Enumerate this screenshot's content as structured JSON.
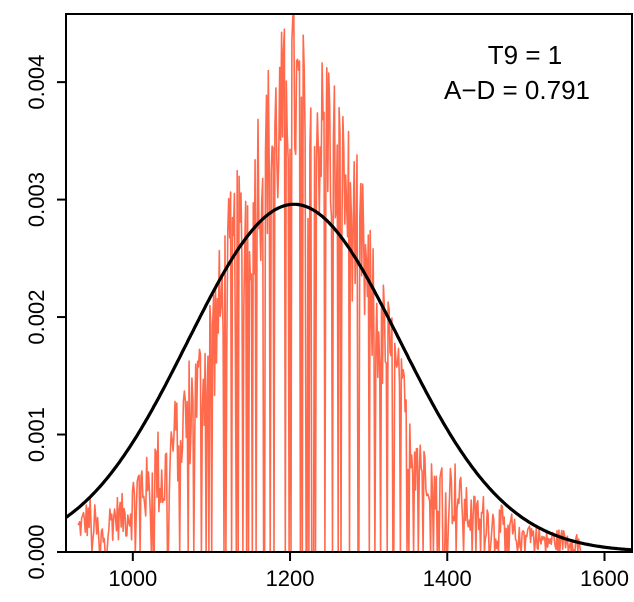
{
  "chart_data": {
    "type": "line",
    "title": "",
    "xlabel": "",
    "ylabel": "",
    "xlim": [
      915,
      1635
    ],
    "ylim": [
      0,
      0.00458
    ],
    "x_ticks": [
      1000,
      1200,
      1400,
      1600
    ],
    "x_tick_labels": [
      "1000",
      "1200",
      "1400",
      "1600"
    ],
    "y_ticks": [
      0.0,
      0.001,
      0.002,
      0.003,
      0.004
    ],
    "y_tick_labels": [
      "0.000",
      "0.001",
      "0.002",
      "0.003",
      "0.004"
    ],
    "grid": false,
    "annotations": [
      "T9 = 1",
      "A−D = 0.791"
    ],
    "series": [
      {
        "color": "#ff6a4d",
        "style": "empirical histogram-like density (noisy)",
        "x": [
          930,
          945,
          960,
          975,
          990,
          1000,
          1010,
          1020,
          1030,
          1040,
          1050,
          1060,
          1070,
          1080,
          1090,
          1100,
          1110,
          1120,
          1130,
          1140,
          1150,
          1160,
          1170,
          1180,
          1190,
          1200,
          1210,
          1220,
          1230,
          1240,
          1250,
          1260,
          1270,
          1280,
          1290,
          1300,
          1310,
          1320,
          1330,
          1340,
          1350,
          1360,
          1370,
          1380,
          1390,
          1400,
          1410,
          1420,
          1430,
          1440,
          1450,
          1460,
          1470,
          1480,
          1490,
          1500,
          1520,
          1540,
          1560,
          1570
        ],
        "y": [
          0.0002,
          0.0003,
          0.0001,
          0.0003,
          0.0003,
          0.0004,
          0.0006,
          0.0005,
          0.0007,
          0.0006,
          0.0009,
          0.001,
          0.0012,
          0.0013,
          0.0015,
          0.0018,
          0.002,
          0.0023,
          0.0025,
          0.0027,
          0.0029,
          0.0032,
          0.0034,
          0.0035,
          0.0037,
          0.004,
          0.0038,
          0.0036,
          0.0037,
          0.0035,
          0.0036,
          0.0032,
          0.0031,
          0.0028,
          0.0026,
          0.0022,
          0.002,
          0.0018,
          0.0016,
          0.0013,
          0.0011,
          0.0009,
          0.0008,
          0.0007,
          0.0006,
          0.0005,
          0.0005,
          0.0004,
          0.0003,
          0.0003,
          0.0003,
          0.0002,
          0.0002,
          0.0002,
          0.0001,
          0.0002,
          0.0001,
          0.0001,
          0.0001,
          0.0001
        ],
        "spread": [
          0.0001,
          0.0002,
          0.0002,
          0.0002,
          0.0002,
          0.0003,
          0.0003,
          0.0003,
          0.0004,
          0.0004,
          0.0004,
          0.0004,
          0.0005,
          0.0005,
          0.0005,
          0.0006,
          0.0006,
          0.0007,
          0.0007,
          0.0007,
          0.0007,
          0.0008,
          0.0008,
          0.0008,
          0.0008,
          0.0008,
          0.0008,
          0.0008,
          0.0008,
          0.0008,
          0.0008,
          0.0008,
          0.0007,
          0.0007,
          0.0007,
          0.0006,
          0.0006,
          0.0005,
          0.0005,
          0.0004,
          0.0004,
          0.0004,
          0.0003,
          0.0003,
          0.0003,
          0.0003,
          0.0003,
          0.0002,
          0.0002,
          0.0002,
          0.0002,
          0.0002,
          0.0002,
          0.0002,
          0.0001,
          0.0001,
          0.0001,
          0.0001,
          0.0001,
          0.0001
        ]
      },
      {
        "color": "#000000",
        "style": "fitted normal density",
        "mean": 1205,
        "sd": 135,
        "peak": 0.00296,
        "x_range": [
          915,
          1635
        ]
      }
    ]
  }
}
